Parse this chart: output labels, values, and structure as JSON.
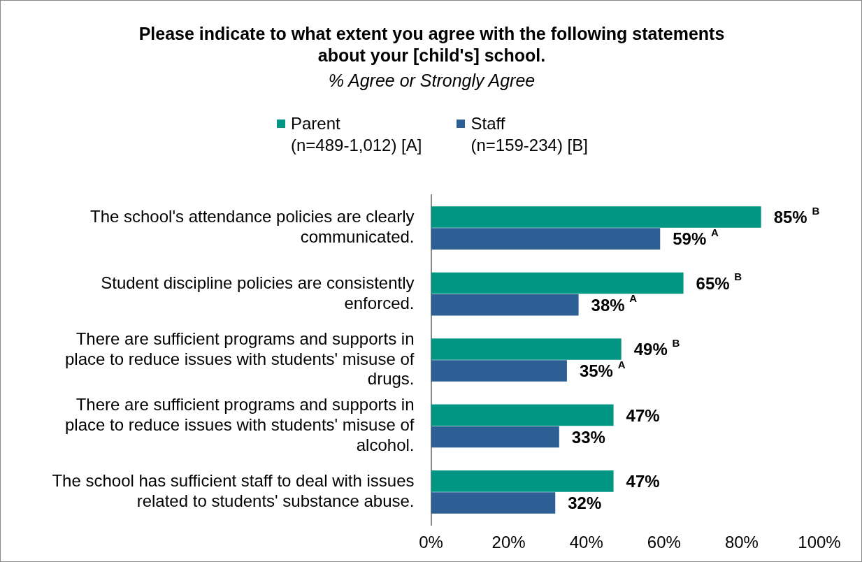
{
  "chart_data": {
    "type": "bar",
    "orientation": "horizontal",
    "title": "Please indicate to what extent you agree with the following statements\nabout your [child's] school.",
    "subtitle": "% Agree or Strongly Agree",
    "categories": [
      "The school's attendance policies are clearly communicated.",
      "Student discipline policies are consistently enforced.",
      "There are sufficient programs and supports in place to reduce issues with students' misuse of drugs.",
      "There are sufficient programs and supports in place to reduce issues with students' misuse of alcohol.",
      "The school has sufficient staff to deal with issues related to students' substance abuse."
    ],
    "series": [
      {
        "name": "Parent\n(n=489-1,012) [A]",
        "color": "#009683",
        "values": [
          85,
          65,
          49,
          47,
          47
        ],
        "value_labels": [
          "85% $^{B}$",
          "65% $^{B}$",
          "49% $^{B}$",
          "47%",
          "47%"
        ]
      },
      {
        "name": "Staff\n(n=159-234) [B]",
        "color": "#2e5f94",
        "values": [
          59,
          38,
          35,
          33,
          32
        ],
        "value_labels": [
          "59% $^{A}$",
          "38% $^{A}$",
          "35% $^{A}$",
          "33%",
          "32%"
        ]
      }
    ],
    "xlim": [
      0,
      100
    ],
    "xticks": [
      {
        "value": 0,
        "label": "0%"
      },
      {
        "value": 20,
        "label": "20%"
      },
      {
        "value": 40,
        "label": "40%"
      },
      {
        "value": 60,
        "label": "60%"
      },
      {
        "value": 80,
        "label": "80%"
      },
      {
        "value": 100,
        "label": "100%"
      }
    ],
    "legend": "top",
    "grid": false
  }
}
